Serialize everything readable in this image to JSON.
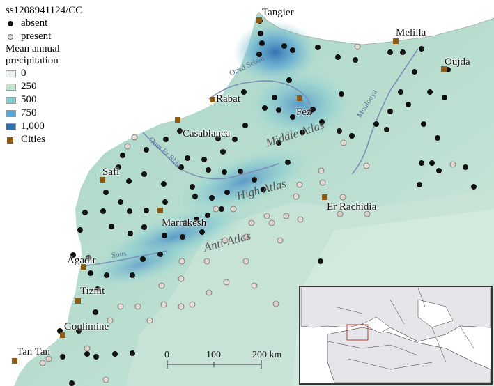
{
  "legend": {
    "title": "ss1208941124/CC",
    "absent": "absent",
    "present": "present",
    "precip_title_1": "Mean annual",
    "precip_title_2": "precipitation",
    "precip_levels": [
      {
        "label": "0",
        "color": "#edf6ec"
      },
      {
        "label": "250",
        "color": "#bfe3cf"
      },
      {
        "label": "500",
        "color": "#86ccd1"
      },
      {
        "label": "750",
        "color": "#5aa6d3"
      },
      {
        "label": "1,000",
        "color": "#2c6fb2"
      }
    ],
    "cities": "Cities"
  },
  "colors": {
    "absent": "#111111",
    "present": "#e2d6cf",
    "city": "#8b5a14",
    "river": "#7b8fb6"
  },
  "cities": {
    "tangier": "Tangier",
    "melilla": "Melilla",
    "oujda": "Oujda",
    "rabat": "Rabat",
    "fez": "Fez",
    "casablanca": "Casablanca",
    "safi": "Safi",
    "marrakesh": "Marrakesh",
    "er_rachidia": "Er Rachidia",
    "agadir": "Agadir",
    "tiznit": "Tiznit",
    "goulimine": "Goulimine",
    "tan_tan": "Tan Tan"
  },
  "regions": {
    "middle_atlas": "Middle Atlas",
    "high_atlas": "High Atlas",
    "anti_atlas": "Anti-Atlas"
  },
  "rivers": {
    "sebou": "Oued Sebou",
    "moulouya": "Moulouya",
    "oum_er_rbia": "Oum Er Rbia",
    "sous": "Sous"
  },
  "scale": {
    "t0": "0",
    "t100": "100",
    "t200": "200 km"
  },
  "inset": {
    "icon": "world-inset-map-icon"
  }
}
